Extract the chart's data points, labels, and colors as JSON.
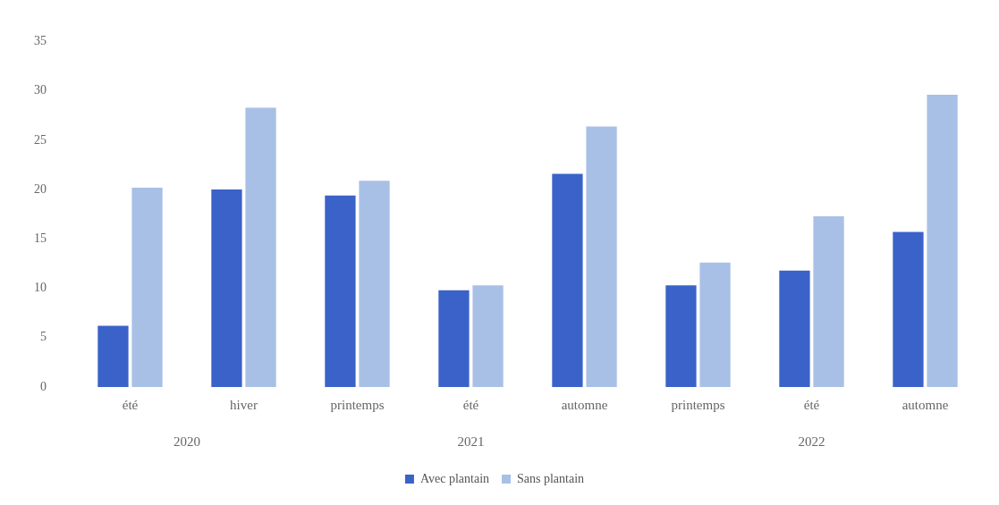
{
  "chart_data": {
    "type": "bar",
    "categories": [
      "été",
      "hiver",
      "printemps",
      "été",
      "automne",
      "printemps",
      "été",
      "automne"
    ],
    "series": [
      {
        "name": "Avec plantain",
        "color": "#3a62c8",
        "values": [
          6.2,
          20,
          19.4,
          9.8,
          21.6,
          10.3,
          11.8,
          15.7
        ]
      },
      {
        "name": "Sans plantain",
        "color": "#a9c0e6",
        "values": [
          20.2,
          28.3,
          20.9,
          10.3,
          26.4,
          12.6,
          17.3,
          29.6
        ]
      }
    ],
    "ylim": [
      0,
      35
    ],
    "yticks": [
      0,
      5,
      10,
      15,
      20,
      25,
      30,
      35
    ],
    "grid": false,
    "legend": "bottom",
    "annotations": [
      "2020",
      "2021",
      "2022"
    ]
  }
}
